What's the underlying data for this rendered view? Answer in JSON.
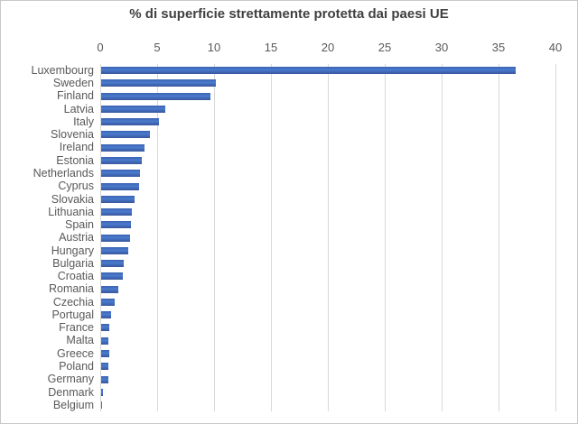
{
  "chart_data": {
    "type": "bar",
    "orientation": "horizontal",
    "title": "% di superficie strettamente protetta dai paesi UE",
    "categories": [
      "Luxembourg",
      "Sweden",
      "Finland",
      "Latvia",
      "Italy",
      "Slovenia",
      "Ireland",
      "Estonia",
      "Netherlands",
      "Cyprus",
      "Slovakia",
      "Lithuania",
      "Spain",
      "Austria",
      "Hungary",
      "Bulgaria",
      "Croatia",
      "Romania",
      "Czechia",
      "Portugal",
      "France",
      "Malta",
      "Greece",
      "Poland",
      "Germany",
      "Denmark",
      "Belgium"
    ],
    "values": [
      36.4,
      10.1,
      9.6,
      5.6,
      5.1,
      4.3,
      3.8,
      3.6,
      3.4,
      3.3,
      2.9,
      2.7,
      2.6,
      2.5,
      2.4,
      1.95,
      1.9,
      1.5,
      1.2,
      0.9,
      0.7,
      0.65,
      0.7,
      0.6,
      0.6,
      0.15,
      0.02
    ],
    "xlim": [
      0,
      40
    ],
    "x_ticks": [
      0,
      5,
      10,
      15,
      20,
      25,
      30,
      35,
      40
    ],
    "xlabel": "",
    "ylabel": "",
    "grid": true,
    "legend": false,
    "bar_color": "#4472C4",
    "gridline_color": "#D9D9D9",
    "title_color": "#404040",
    "label_color": "#595959"
  }
}
